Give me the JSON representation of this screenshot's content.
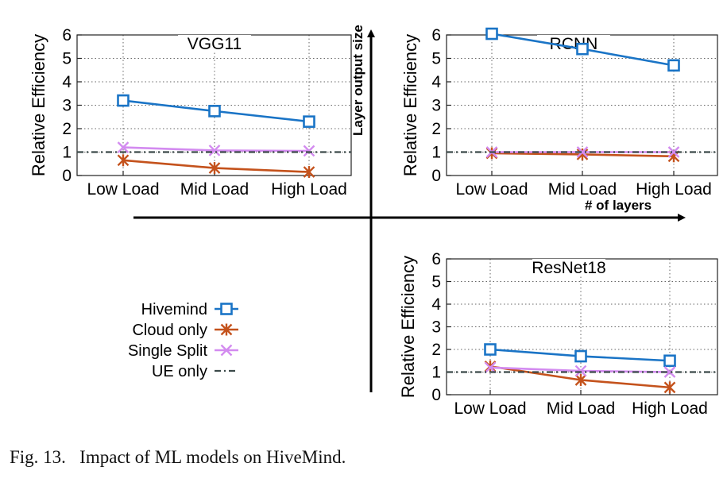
{
  "colors": {
    "hivemind": "#1a74c6",
    "cloud_only": "#c4521c",
    "single_split": "#d38bf0",
    "ue_only": "#3c4a4a"
  },
  "legend": [
    {
      "label": "Hivemind",
      "key": "hivemind",
      "marker": "square"
    },
    {
      "label": "Cloud only",
      "key": "cloud_only",
      "marker": "asterisk"
    },
    {
      "label": "Single Split",
      "key": "single_split",
      "marker": "x"
    },
    {
      "label": "UE only",
      "key": "ue_only",
      "marker": "dashdot"
    }
  ],
  "quadrant_axes": {
    "vertical_label": "Layer output size",
    "horizontal_label": "# of layers"
  },
  "caption": "Fig. 13.   Impact of ML models on HiveMind.",
  "chart_data": [
    {
      "type": "line",
      "title": "VGG11",
      "ylabel": "Relative Efficiency",
      "xlabel": "",
      "categories": [
        "Low Load",
        "Mid Load",
        "High Load"
      ],
      "ylim": [
        0,
        6
      ],
      "yticks": [
        0,
        1,
        2,
        3,
        4,
        5,
        6
      ],
      "grid": true,
      "series": [
        {
          "name": "Hivemind",
          "key": "hivemind",
          "values": [
            3.2,
            2.75,
            2.3
          ]
        },
        {
          "name": "Cloud only",
          "key": "cloud_only",
          "values": [
            0.65,
            0.32,
            0.15
          ]
        },
        {
          "name": "Single Split",
          "key": "single_split",
          "values": [
            1.2,
            1.07,
            1.05
          ]
        },
        {
          "name": "UE only",
          "key": "ue_only",
          "values": [
            1,
            1,
            1
          ]
        }
      ]
    },
    {
      "type": "line",
      "title": "RCNN",
      "ylabel": "Relative Efficiency",
      "xlabel": "",
      "categories": [
        "Low Load",
        "Mid Load",
        "High Load"
      ],
      "ylim": [
        0,
        6
      ],
      "yticks": [
        0,
        1,
        2,
        3,
        4,
        5,
        6
      ],
      "grid": true,
      "series": [
        {
          "name": "Hivemind",
          "key": "hivemind",
          "values": [
            6.05,
            5.4,
            4.7
          ]
        },
        {
          "name": "Cloud only",
          "key": "cloud_only",
          "values": [
            0.95,
            0.9,
            0.82
          ]
        },
        {
          "name": "Single Split",
          "key": "single_split",
          "values": [
            1.0,
            1.0,
            1.0
          ]
        },
        {
          "name": "UE only",
          "key": "ue_only",
          "values": [
            1,
            1,
            1
          ]
        }
      ]
    },
    {
      "type": "line",
      "title": "ResNet18",
      "ylabel": "Relative Efficiency",
      "xlabel": "",
      "categories": [
        "Low Load",
        "Mid Load",
        "High Load"
      ],
      "ylim": [
        0,
        6
      ],
      "yticks": [
        0,
        1,
        2,
        3,
        4,
        5,
        6
      ],
      "grid": true,
      "series": [
        {
          "name": "Hivemind",
          "key": "hivemind",
          "values": [
            2.0,
            1.7,
            1.5
          ]
        },
        {
          "name": "Cloud only",
          "key": "cloud_only",
          "values": [
            1.25,
            0.65,
            0.32
          ]
        },
        {
          "name": "Single Split",
          "key": "single_split",
          "values": [
            1.2,
            1.05,
            1.0
          ]
        },
        {
          "name": "UE only",
          "key": "ue_only",
          "values": [
            1,
            1,
            1
          ]
        }
      ]
    }
  ]
}
